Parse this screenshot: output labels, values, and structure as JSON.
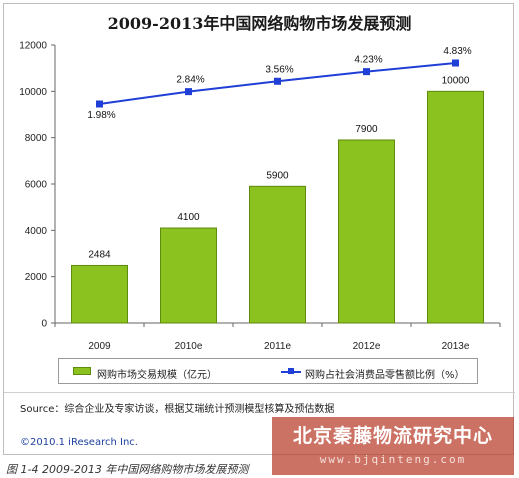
{
  "chart_data": {
    "type": "bar",
    "title": "2009-2013年中国网络购物市场发展预测",
    "categories": [
      "2009",
      "2010e",
      "2011e",
      "2012e",
      "2013e"
    ],
    "series": [
      {
        "name": "网购市场交易规模（亿元）",
        "type": "bar",
        "values": [
          2484,
          4100,
          5900,
          7900,
          10000
        ],
        "labels": [
          "2484",
          "4100",
          "5900",
          "7900",
          "10000"
        ],
        "color": "#8cc21f"
      },
      {
        "name": "网购占社会消费品零售额比例（%）",
        "type": "line",
        "values": [
          1.98,
          2.84,
          3.56,
          4.23,
          4.83
        ],
        "labels": [
          "1.98%",
          "2.84%",
          "3.56%",
          "4.23%",
          "4.83%"
        ],
        "color": "#1f3fd6"
      }
    ],
    "yticks": [
      "0",
      "2000",
      "4000",
      "6000",
      "8000",
      "10000",
      "12000"
    ],
    "ylim": [
      0,
      12000
    ],
    "grid": false,
    "legend_position": "bottom"
  },
  "legend": {
    "bar_label": "网购市场交易规模（亿元）",
    "line_label": "网购占社会消费品零售额比例（%）"
  },
  "source_text": "Source：综合企业及专家访谈，根据艾瑞统计预测模型核算及预估数据",
  "copyright_text": "©2010.1 iResearch Inc.",
  "watermark": {
    "title": "北京秦藤物流研究中心",
    "url": "www.bjqinteng.com"
  },
  "caption_text": "图 1-4 2009-2013 年中国网络购物市场发展预测"
}
